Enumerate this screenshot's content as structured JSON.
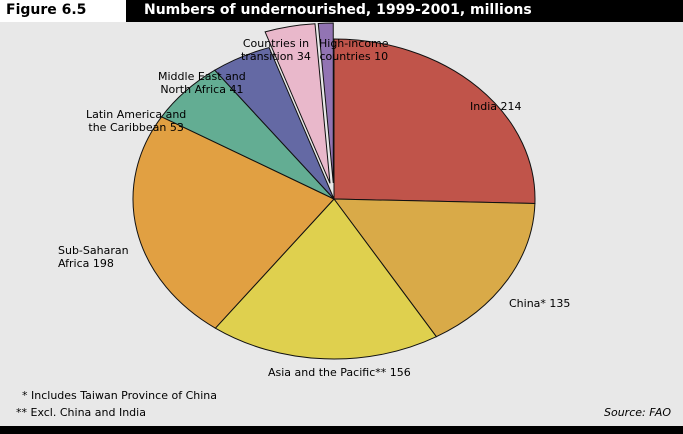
{
  "figure_label": "Figure 6.5",
  "title": "Numbers of undernourished, 1999-2001, millions",
  "footnotes": [
    "* Includes Taiwan Province of China",
    "** Excl. China and India"
  ],
  "source": "Source: FAO",
  "chart_data": {
    "type": "pie",
    "title": "Numbers of undernourished, 1999-2001, millions",
    "units": "millions",
    "slices": [
      {
        "label": "India 214",
        "name": "India",
        "value": 214,
        "color": "#c0544a",
        "exploded": false
      },
      {
        "label": "China* 135",
        "name": "China*",
        "value": 135,
        "color": "#d9aa48",
        "exploded": false
      },
      {
        "label": "Asia and the Pacific** 156",
        "name": "Asia and the Pacific**",
        "value": 156,
        "color": "#dfd04e",
        "exploded": false
      },
      {
        "label": "Sub-Saharan\nAfrica 198",
        "name": "Sub-Saharan Africa",
        "value": 198,
        "color": "#e1a042",
        "exploded": false
      },
      {
        "label": "Latin America and\nthe Caribbean 53",
        "name": "Latin America and the Caribbean",
        "value": 53,
        "color": "#63ad93",
        "exploded": false
      },
      {
        "label": "Middle East and\nNorth Africa 41",
        "name": "Middle East and North Africa",
        "value": 41,
        "color": "#6469a4",
        "exploded": false
      },
      {
        "label": "Countries in\ntransition 34",
        "name": "Countries in transition",
        "value": 34,
        "color": "#e9b8cb",
        "exploded": true
      },
      {
        "label": "High-income\ncountries 10",
        "name": "High-income countries",
        "value": 10,
        "color": "#9274b3",
        "exploded": true
      }
    ]
  }
}
